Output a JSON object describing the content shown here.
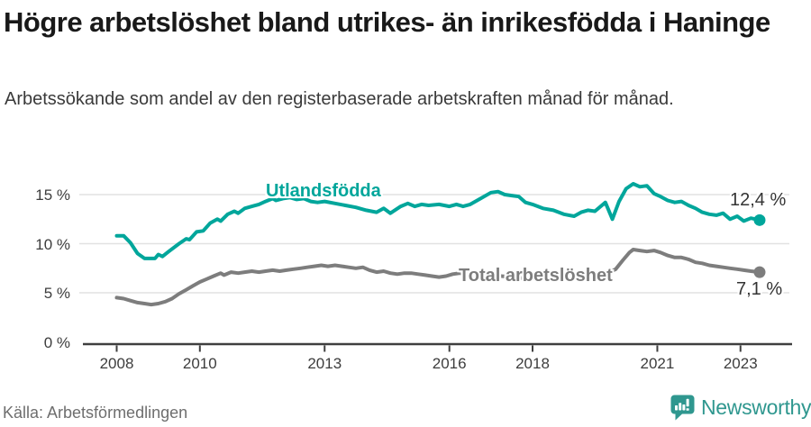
{
  "header": {
    "title": "Högre arbetslöshet bland utrikes- än inrikesfödda i Haninge",
    "subtitle": "Arbetssökande som andel av den registerbaserade arbetskraften månad för månad."
  },
  "chart_data": {
    "type": "line",
    "unit": "%",
    "grid": "horizontal",
    "legend_position": "inline-labels",
    "xlim": [
      2008,
      2023.6
    ],
    "ylim": [
      0,
      16.5
    ],
    "x_tick_labels": [
      "2008",
      "2010",
      "2013",
      "2016",
      "2018",
      "2021",
      "2023"
    ],
    "x_tick_years": [
      2008,
      2010,
      2013,
      2016,
      2018,
      2021,
      2023
    ],
    "y_tick_labels": [
      "0 %",
      "5 %",
      "10 %",
      "15 %"
    ],
    "y_tick_values": [
      0,
      5,
      10,
      15
    ],
    "series": [
      {
        "name": "Utlandsfödda",
        "color": "#00a69b",
        "end_label": "12,4 %",
        "end_value": 12.4,
        "x": [
          2008.0,
          2008.17,
          2008.33,
          2008.5,
          2008.67,
          2008.92,
          2009.0,
          2009.1,
          2009.25,
          2009.5,
          2009.67,
          2009.75,
          2009.92,
          2010.08,
          2010.25,
          2010.42,
          2010.5,
          2010.67,
          2010.83,
          2010.92,
          2011.08,
          2011.25,
          2011.42,
          2011.58,
          2011.75,
          2011.83,
          2012.0,
          2012.17,
          2012.33,
          2012.5,
          2012.67,
          2012.83,
          2013.0,
          2013.25,
          2013.5,
          2013.75,
          2014.0,
          2014.25,
          2014.42,
          2014.58,
          2014.83,
          2015.0,
          2015.17,
          2015.33,
          2015.5,
          2015.75,
          2016.0,
          2016.17,
          2016.33,
          2016.5,
          2016.75,
          2017.0,
          2017.17,
          2017.33,
          2017.5,
          2017.67,
          2017.83,
          2018.0,
          2018.25,
          2018.5,
          2018.75,
          2019.0,
          2019.17,
          2019.33,
          2019.5,
          2019.75,
          2019.92,
          2020.08,
          2020.25,
          2020.42,
          2020.58,
          2020.75,
          2020.92,
          2021.08,
          2021.25,
          2021.42,
          2021.58,
          2021.75,
          2021.92,
          2022.08,
          2022.25,
          2022.42,
          2022.58,
          2022.75,
          2022.92,
          2023.08,
          2023.25,
          2023.46
        ],
        "values": [
          10.8,
          10.8,
          10.1,
          9.0,
          8.5,
          8.5,
          8.9,
          8.7,
          9.2,
          10.0,
          10.5,
          10.4,
          11.2,
          11.3,
          12.1,
          12.5,
          12.3,
          13.0,
          13.3,
          13.1,
          13.6,
          13.8,
          14.0,
          14.3,
          14.6,
          14.4,
          14.6,
          14.7,
          14.5,
          14.6,
          14.3,
          14.2,
          14.3,
          14.1,
          13.9,
          13.7,
          13.4,
          13.2,
          13.6,
          13.1,
          13.8,
          14.1,
          13.8,
          14.0,
          13.9,
          14.0,
          13.8,
          14.0,
          13.8,
          14.0,
          14.6,
          15.2,
          15.3,
          15.0,
          14.9,
          14.8,
          14.2,
          14.0,
          13.6,
          13.4,
          13.0,
          12.8,
          13.2,
          13.4,
          13.3,
          14.2,
          12.5,
          14.3,
          15.6,
          16.1,
          15.8,
          15.9,
          15.1,
          14.8,
          14.4,
          14.2,
          14.3,
          13.9,
          13.6,
          13.2,
          13.0,
          12.9,
          13.1,
          12.5,
          12.8,
          12.3,
          12.6,
          12.4
        ]
      },
      {
        "name": "Total arbetslöshet",
        "color": "#7d7d7d",
        "end_label": "7,1 %",
        "end_value": 7.1,
        "x": [
          2008.0,
          2008.17,
          2008.33,
          2008.5,
          2008.67,
          2008.83,
          2009.0,
          2009.17,
          2009.33,
          2009.5,
          2009.67,
          2009.83,
          2010.0,
          2010.17,
          2010.33,
          2010.5,
          2010.58,
          2010.75,
          2010.92,
          2011.08,
          2011.25,
          2011.42,
          2011.58,
          2011.75,
          2011.92,
          2012.08,
          2012.25,
          2012.42,
          2012.58,
          2012.75,
          2012.92,
          2013.08,
          2013.25,
          2013.42,
          2013.58,
          2013.75,
          2013.92,
          2014.08,
          2014.25,
          2014.42,
          2014.58,
          2014.75,
          2014.92,
          2015.08,
          2015.25,
          2015.42,
          2015.58,
          2015.75,
          2015.92,
          2016.08,
          2016.25,
          2016.5,
          2016.75,
          2017.0,
          2017.25,
          2017.5,
          2017.75,
          2018.0,
          2018.25,
          2018.5,
          2018.75,
          2019.0,
          2019.25,
          2019.5,
          2019.75,
          2020.0,
          2020.17,
          2020.33,
          2020.42,
          2020.58,
          2020.75,
          2020.92,
          2021.08,
          2021.25,
          2021.42,
          2021.58,
          2021.75,
          2021.92,
          2022.08,
          2022.25,
          2022.42,
          2022.58,
          2022.75,
          2022.92,
          2023.08,
          2023.25,
          2023.46
        ],
        "values": [
          4.5,
          4.4,
          4.2,
          4.0,
          3.9,
          3.8,
          3.9,
          4.1,
          4.4,
          4.9,
          5.3,
          5.7,
          6.1,
          6.4,
          6.7,
          7.0,
          6.8,
          7.1,
          7.0,
          7.1,
          7.2,
          7.1,
          7.2,
          7.3,
          7.2,
          7.3,
          7.4,
          7.5,
          7.6,
          7.7,
          7.8,
          7.7,
          7.8,
          7.7,
          7.6,
          7.5,
          7.6,
          7.3,
          7.1,
          7.2,
          7.0,
          6.9,
          7.0,
          7.0,
          6.9,
          6.8,
          6.7,
          6.6,
          6.7,
          6.9,
          7.0,
          6.9,
          6.8,
          6.8,
          6.7,
          6.6,
          6.5,
          6.4,
          6.4,
          6.3,
          6.3,
          6.4,
          6.5,
          6.6,
          6.9,
          7.4,
          8.3,
          9.1,
          9.4,
          9.3,
          9.2,
          9.3,
          9.1,
          8.8,
          8.6,
          8.6,
          8.4,
          8.1,
          8.0,
          7.8,
          7.7,
          7.6,
          7.5,
          7.4,
          7.3,
          7.2,
          7.1
        ]
      }
    ],
    "axis_color": "#3f3f3f",
    "gridline_color": "#e2e2e2"
  },
  "footer": {
    "source": "Källa: Arbetsförmedlingen",
    "logo_text": "Newsworthy",
    "logo_color": "#2f978f"
  }
}
